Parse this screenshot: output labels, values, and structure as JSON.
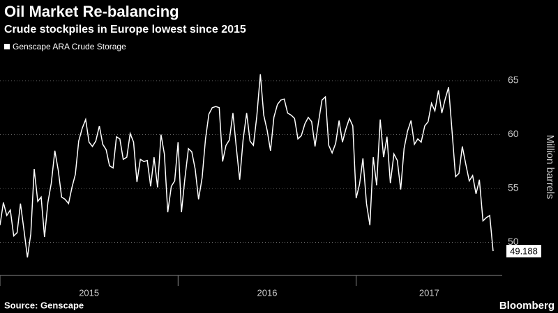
{
  "chart_data": {
    "type": "line",
    "title": "Oil Market Re-balancing",
    "subtitle": "Crude stockpiles in Europe lowest since 2015",
    "y_label": "Million barrels",
    "source": "Source: Genscape",
    "brand": "Bloomberg",
    "xlim": [
      2015,
      2017.82
    ],
    "xticks": [
      2015,
      2016,
      2017
    ],
    "ylim": [
      47,
      67
    ],
    "yticks": [
      50,
      55,
      60,
      65
    ],
    "grid": true,
    "x": [
      2015.0,
      2015.019,
      2015.038,
      2015.058,
      2015.077,
      2015.096,
      2015.115,
      2015.135,
      2015.154,
      2015.173,
      2015.192,
      2015.212,
      2015.231,
      2015.25,
      2015.269,
      2015.288,
      2015.308,
      2015.327,
      2015.346,
      2015.365,
      2015.385,
      2015.404,
      2015.423,
      2015.442,
      2015.462,
      2015.481,
      2015.5,
      2015.519,
      2015.538,
      2015.558,
      2015.577,
      2015.596,
      2015.615,
      2015.635,
      2015.654,
      2015.673,
      2015.692,
      2015.712,
      2015.731,
      2015.75,
      2015.769,
      2015.788,
      2015.808,
      2015.827,
      2015.846,
      2015.865,
      2015.885,
      2015.904,
      2015.923,
      2015.942,
      2015.962,
      2015.981,
      2016.0,
      2016.019,
      2016.038,
      2016.058,
      2016.077,
      2016.096,
      2016.115,
      2016.135,
      2016.154,
      2016.173,
      2016.192,
      2016.212,
      2016.231,
      2016.25,
      2016.269,
      2016.288,
      2016.308,
      2016.327,
      2016.346,
      2016.365,
      2016.385,
      2016.404,
      2016.423,
      2016.442,
      2016.462,
      2016.481,
      2016.5,
      2016.519,
      2016.538,
      2016.558,
      2016.577,
      2016.596,
      2016.615,
      2016.635,
      2016.654,
      2016.673,
      2016.692,
      2016.712,
      2016.731,
      2016.75,
      2016.769,
      2016.788,
      2016.808,
      2016.827,
      2016.846,
      2016.865,
      2016.885,
      2016.904,
      2016.923,
      2016.942,
      2016.962,
      2016.981,
      2017.0,
      2017.019,
      2017.038,
      2017.058,
      2017.077,
      2017.096,
      2017.115,
      2017.135,
      2017.154,
      2017.173,
      2017.192,
      2017.212,
      2017.231,
      2017.25,
      2017.269,
      2017.288,
      2017.308,
      2017.327,
      2017.346,
      2017.365,
      2017.385,
      2017.404,
      2017.423,
      2017.442,
      2017.462,
      2017.481,
      2017.5,
      2017.519,
      2017.538,
      2017.558,
      2017.577,
      2017.596,
      2017.615,
      2017.635,
      2017.654,
      2017.673,
      2017.692,
      2017.712,
      2017.731,
      2017.75,
      2017.769
    ],
    "series": [
      {
        "name": "Genscape ARA Crude Storage",
        "color": "#ffffff",
        "values": [
          51.6,
          53.7,
          52.5,
          53.0,
          50.6,
          50.9,
          53.6,
          51.1,
          48.6,
          50.8,
          56.8,
          53.8,
          54.2,
          50.5,
          53.7,
          55.5,
          58.5,
          56.7,
          54.2,
          54.0,
          53.6,
          55.1,
          56.3,
          59.4,
          60.6,
          61.4,
          59.3,
          58.9,
          59.4,
          60.8,
          59.1,
          58.6,
          57.1,
          56.9,
          59.8,
          59.6,
          57.7,
          57.9,
          60.1,
          59.3,
          55.6,
          57.7,
          57.5,
          57.6,
          55.2,
          57.9,
          55.1,
          60.0,
          58.2,
          52.8,
          55.2,
          55.7,
          59.3,
          52.8,
          55.9,
          58.7,
          58.4,
          56.8,
          54.0,
          56.0,
          59.6,
          61.9,
          62.5,
          62.6,
          62.5,
          57.5,
          59.0,
          59.5,
          62.0,
          58.8,
          55.8,
          59.5,
          62.0,
          59.4,
          59.0,
          61.7,
          65.6,
          61.8,
          60.4,
          58.5,
          61.6,
          62.8,
          63.2,
          63.3,
          62.0,
          61.8,
          61.5,
          59.6,
          59.9,
          61.0,
          61.6,
          61.2,
          58.9,
          61.1,
          63.2,
          63.5,
          59.0,
          58.3,
          59.2,
          61.3,
          59.3,
          60.5,
          61.5,
          60.8,
          54.1,
          55.4,
          57.8,
          53.6,
          51.6,
          57.9,
          55.3,
          61.4,
          57.9,
          59.8,
          55.5,
          58.2,
          57.6,
          54.9,
          58.7,
          60.3,
          61.3,
          59.1,
          59.6,
          59.3,
          60.8,
          61.2,
          62.9,
          62.2,
          64.1,
          62.0,
          63.3,
          64.4,
          60.4,
          56.1,
          56.4,
          58.9,
          57.3,
          55.7,
          56.2,
          54.5,
          55.8,
          52.0,
          52.3,
          52.5,
          49.188
        ]
      }
    ]
  }
}
